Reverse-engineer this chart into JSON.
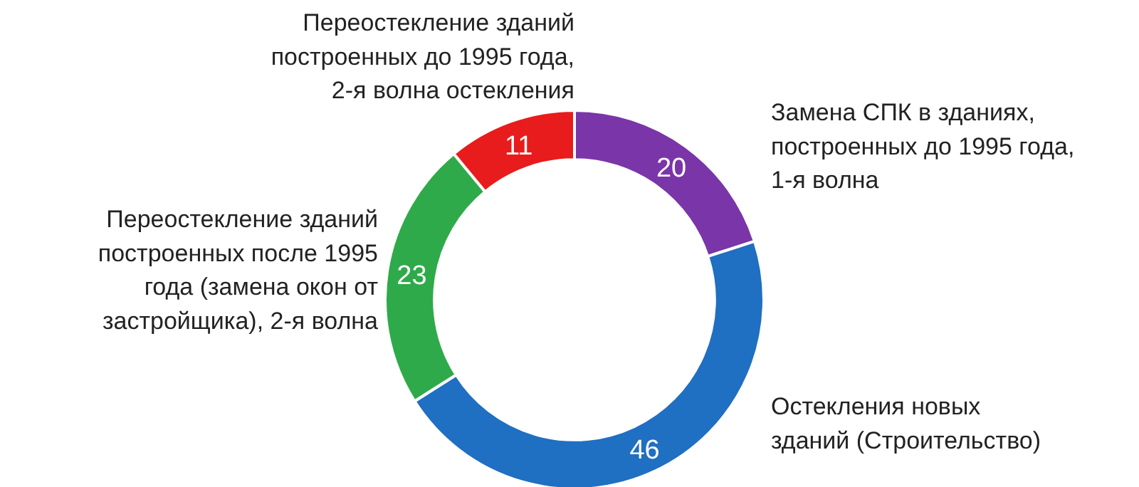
{
  "chart_data": {
    "type": "donut",
    "categories": [
      "Замена СПК в зданиях,\nпостроенных до 1995 года,\n1-я волна",
      "Остекления новых\nзданий (Строительство)",
      "Переостекление зданий\nпостроенных после 1995\nгода (замена окон от\nзастройщика), 2-я волна",
      "Переостекление зданий\nпостроенных до 1995 года,\n2-я волна остекления"
    ],
    "values": [
      20,
      46,
      23,
      11
    ],
    "colors": [
      "#7a35a8",
      "#1f6fc2",
      "#2faa4a",
      "#e81c1c"
    ],
    "data_labels": true
  }
}
